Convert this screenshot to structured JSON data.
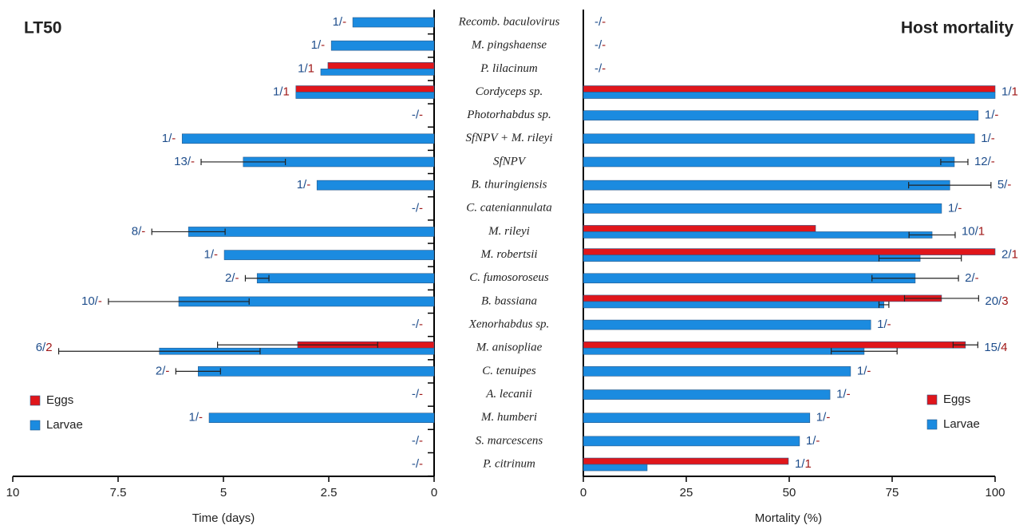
{
  "chart_data": [
    {
      "type": "bar",
      "orientation": "horizontal",
      "title": "LT50",
      "xlabel": "Time (days)",
      "categories": [
        "Recomb. baculovirus",
        "M. pingshaense",
        "P. lilacinum",
        "Cordyceps sp.",
        "Photorhabdus sp.",
        "SfNPV + M. rileyi",
        "SfNPV",
        "B. thuringiensis",
        "C. cateniannulata",
        "M. rileyi",
        "M. robertsii",
        "C. fumosoroseus",
        "B. bassiana",
        "Xenorhabdus sp.",
        "M. anisopliae",
        "C. tenuipes",
        "A. lecanii",
        "M. humberi",
        "S. marcescens",
        "P. citrinum"
      ],
      "xlim": [
        10,
        0
      ],
      "xticks": [
        10,
        7.5,
        5,
        2.5,
        0
      ],
      "legend": "lower left",
      "series": [
        {
          "name": "Eggs",
          "color": "#e0161b",
          "values": [
            null,
            null,
            2.52,
            3.28,
            null,
            null,
            null,
            null,
            null,
            null,
            null,
            null,
            null,
            null,
            3.24,
            null,
            null,
            null,
            null,
            null
          ],
          "errors": [
            null,
            null,
            null,
            null,
            null,
            null,
            null,
            null,
            null,
            null,
            null,
            null,
            null,
            null,
            1.9,
            null,
            null,
            null,
            null,
            null
          ]
        },
        {
          "name": "Larvae",
          "color": "#1b8be0",
          "values": [
            1.93,
            2.44,
            2.69,
            3.28,
            null,
            5.98,
            4.53,
            2.78,
            null,
            5.83,
            4.98,
            4.2,
            6.06,
            null,
            6.52,
            5.6,
            null,
            5.34,
            null,
            null
          ],
          "errors": [
            null,
            null,
            null,
            null,
            null,
            null,
            1.0,
            null,
            null,
            0.87,
            null,
            0.28,
            1.67,
            null,
            2.39,
            0.53,
            null,
            null,
            null,
            null
          ]
        }
      ],
      "study_counts": [
        "1/-",
        "1/-",
        "1/1",
        "1/1",
        "-/-",
        "1/-",
        "13/-",
        "1/-",
        "-/-",
        "8/-",
        "1/-",
        "2/-",
        "10/-",
        "-/-",
        "6/2",
        "2/-",
        "-/-",
        "1/-",
        "-/-",
        "-/-"
      ]
    },
    {
      "type": "bar",
      "orientation": "horizontal",
      "title": "Host mortality",
      "xlabel": "Mortality (%)",
      "xlim": [
        0,
        100
      ],
      "xticks": [
        0,
        25,
        50,
        75,
        100
      ],
      "legend": "lower right",
      "series": [
        {
          "name": "Eggs",
          "color": "#e0161b",
          "values": [
            null,
            null,
            null,
            100,
            null,
            null,
            null,
            null,
            null,
            56.4,
            100,
            null,
            87,
            null,
            92.8,
            null,
            null,
            null,
            null,
            49.8
          ],
          "errors": [
            null,
            null,
            null,
            null,
            null,
            null,
            null,
            null,
            null,
            null,
            null,
            null,
            9,
            null,
            3,
            null,
            null,
            null,
            null,
            null
          ]
        },
        {
          "name": "Larvae",
          "color": "#1b8be0",
          "values": [
            null,
            null,
            null,
            100,
            95.9,
            95,
            90.1,
            89,
            87,
            84.7,
            81.8,
            80.6,
            73,
            69.8,
            68.2,
            64.9,
            59.9,
            55,
            52.5,
            15.5
          ],
          "errors": [
            null,
            null,
            null,
            null,
            null,
            null,
            3.3,
            10,
            null,
            5.6,
            10,
            10.5,
            1.2,
            null,
            8,
            null,
            null,
            null,
            null,
            null
          ]
        }
      ],
      "study_counts": [
        "-/-",
        "-/-",
        "-/-",
        "1/1",
        "1/-",
        "1/-",
        "12/-",
        "5/-",
        "1/-",
        "10/1",
        "2/1",
        "2/-",
        "20/3",
        "1/-",
        "15/4",
        "1/-",
        "1/-",
        "1/-",
        "1/-",
        "1/1"
      ]
    }
  ]
}
